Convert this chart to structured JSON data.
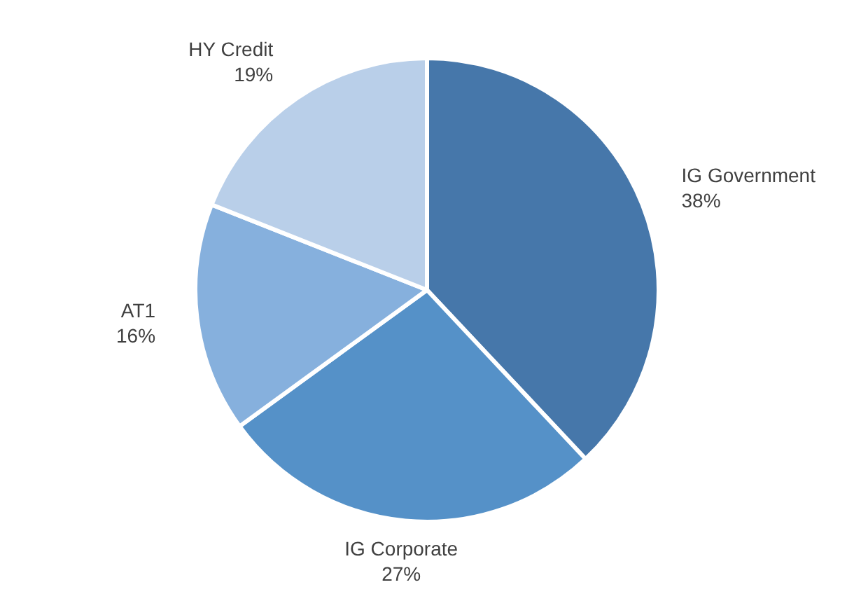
{
  "chart_data": {
    "type": "pie",
    "categories": [
      "IG Government",
      "IG Corporate",
      "AT1",
      "HY Credit"
    ],
    "values": [
      38,
      27,
      16,
      19
    ],
    "colors": [
      "#4677aa",
      "#5591c8",
      "#86b0dd",
      "#b9cfe9"
    ],
    "value_labels": [
      "38%",
      "27%",
      "16%",
      "19%"
    ],
    "legend": false
  }
}
